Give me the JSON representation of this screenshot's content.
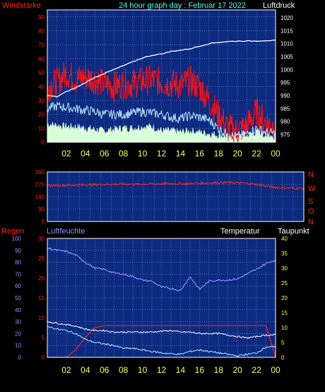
{
  "header": {
    "title": "24 hour graph day : Februar 17 2022",
    "left_label": "Windstärke",
    "right_label": "Luftdruck"
  },
  "colors": {
    "background": "#000000",
    "plot_bg": "#0b2a80",
    "grid": "#7d8fd0",
    "wind_gust": "#ff1010",
    "wind_avg": "#bfe8ff",
    "wind_min": "#d8ffd8",
    "pressure": "#ffffff",
    "direction": "#ff2020",
    "humidity": "#8e94ff",
    "temperature": "#ffffff",
    "dewpoint": "#a8f0ff",
    "rain": "#ff2020",
    "label_red": "#ff2020",
    "label_cyan": "#40ffff",
    "label_yellow": "#ffff40",
    "label_white": "#ffffff",
    "label_blue": "#8e94ff"
  },
  "x_ticks": [
    "02",
    "04",
    "06",
    "08",
    "10",
    "12",
    "14",
    "16",
    "18",
    "20",
    "22",
    "00"
  ],
  "chart_data": [
    {
      "type": "line",
      "name": "wind-pressure",
      "x_hours": [
        0,
        1,
        2,
        3,
        4,
        5,
        6,
        7,
        8,
        9,
        10,
        11,
        12,
        13,
        14,
        15,
        16,
        17,
        18,
        19,
        20,
        21,
        22,
        23,
        24
      ],
      "left_axis": {
        "label": "Windstärke",
        "ticks": [
          0,
          10,
          20,
          30,
          40,
          50,
          60,
          70,
          80,
          90
        ],
        "range": [
          0,
          95
        ]
      },
      "right_axis": {
        "label": "Luftdruck",
        "ticks": [
          975,
          980,
          985,
          990,
          995,
          1000,
          1005,
          1010,
          1015,
          1020
        ],
        "range": [
          972,
          1023
        ]
      },
      "series": [
        {
          "key": "gust",
          "values": [
            40,
            43,
            50,
            45,
            47,
            45,
            42,
            40,
            42,
            42,
            44,
            45,
            43,
            42,
            41,
            44,
            40,
            30,
            20,
            10,
            8,
            12,
            22,
            14,
            12
          ]
        },
        {
          "key": "avg",
          "values": [
            24,
            26,
            25,
            24,
            23,
            22,
            20,
            20,
            20,
            21,
            22,
            21,
            20,
            18,
            17,
            19,
            18,
            16,
            10,
            5,
            4,
            6,
            10,
            7,
            6
          ]
        },
        {
          "key": "min",
          "values": [
            10,
            9,
            8,
            8,
            7,
            6,
            5,
            6,
            7,
            7,
            8,
            8,
            5,
            5,
            4,
            5,
            4,
            3,
            2,
            1,
            1,
            2,
            4,
            2,
            2
          ]
        },
        {
          "key": "pressure",
          "values": [
            990,
            989.5,
            991.5,
            993,
            995,
            997,
            998.5,
            1000,
            1001.5,
            1003,
            1004.5,
            1005.5,
            1006,
            1007,
            1007.5,
            1008,
            1009,
            1010,
            1010.5,
            1010.8,
            1011,
            1011,
            1011,
            1011.2,
            1011.2
          ]
        }
      ]
    },
    {
      "type": "line",
      "name": "wind-direction",
      "right_labels": [
        "N",
        "W",
        "S",
        "O",
        "N"
      ],
      "left_axis": {
        "ticks": [
          0,
          90,
          180,
          270,
          360
        ],
        "range": [
          0,
          360
        ]
      },
      "series": [
        {
          "key": "direction",
          "values": [
            262,
            263,
            263,
            265,
            267,
            268,
            270,
            272,
            270,
            272,
            272,
            275,
            275,
            275,
            278,
            280,
            282,
            282,
            280,
            275,
            265,
            250,
            245,
            243,
            240
          ]
        }
      ]
    },
    {
      "type": "line",
      "name": "humidity-temperature",
      "left_top_label": "Regen",
      "humidity_label": "Luftfeuchte",
      "temperature_label": "Temperatur",
      "dewpoint_label": "Taupunkt",
      "rain_axis": {
        "ticks": [
          0,
          5,
          10,
          15,
          20,
          25,
          30
        ],
        "range": [
          0,
          30
        ]
      },
      "humidity_axis": {
        "ticks": [
          0,
          10,
          20,
          30,
          40,
          50,
          60,
          70,
          80,
          90,
          100
        ],
        "range": [
          0,
          100
        ]
      },
      "temperature_axis": {
        "ticks": [
          0,
          5,
          10,
          15,
          20,
          25,
          30,
          35,
          40
        ],
        "range": [
          0,
          40
        ]
      },
      "series": [
        {
          "key": "humidity",
          "values": [
            92,
            90,
            89,
            86,
            80,
            75,
            74,
            71,
            70,
            68,
            65,
            64,
            59,
            58,
            56,
            68,
            57,
            64,
            65,
            65,
            66,
            70,
            74,
            79,
            82
          ]
        },
        {
          "key": "temperature",
          "values": [
            12,
            11.5,
            11,
            10.5,
            9.5,
            9,
            9,
            8.5,
            8.5,
            8.5,
            8.5,
            8.5,
            8.8,
            9,
            8.5,
            8.5,
            8,
            8,
            8,
            7.5,
            7,
            6.5,
            7,
            7.5,
            7.5
          ]
        },
        {
          "key": "dewpoint",
          "values": [
            10.5,
            9.5,
            9,
            8,
            6,
            5,
            4.5,
            4,
            3,
            3,
            2.5,
            2,
            1.5,
            1.2,
            1,
            2,
            2.5,
            2,
            1.5,
            1,
            0.5,
            1,
            1.5,
            3.5,
            3.5
          ]
        },
        {
          "key": "rain",
          "values": [
            0,
            0,
            0,
            2,
            5,
            7.5,
            8,
            8,
            8,
            8,
            8,
            8,
            8,
            8,
            8,
            8,
            8,
            8,
            8,
            8,
            8,
            8,
            8,
            8,
            0
          ]
        }
      ]
    }
  ]
}
